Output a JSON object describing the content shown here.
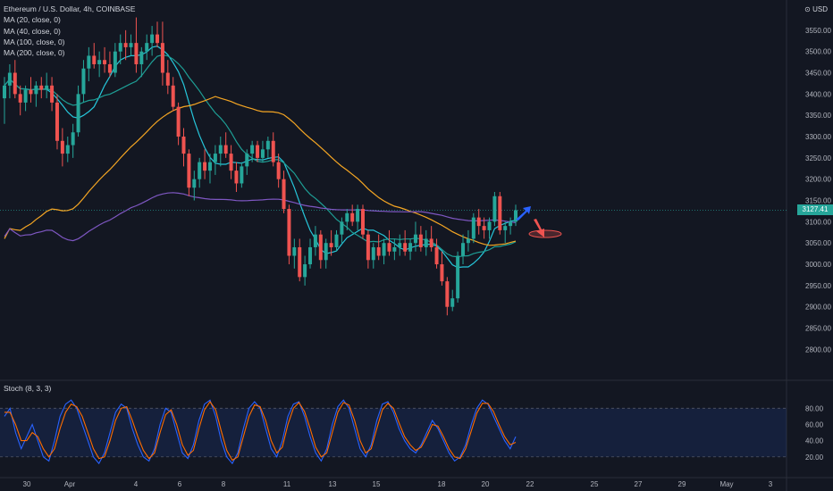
{
  "header": {
    "symbol_title": "Ethereum / U.S. Dollar, 4h, COINBASE",
    "currency_label": "USD",
    "currency_icon": "settings-icon"
  },
  "indicators": [
    {
      "label": "MA (20, close, 0)",
      "color": "#26c6da"
    },
    {
      "label": "MA (40, close, 0)",
      "color": "#1e9e95"
    },
    {
      "label": "MA (100, close, 0)",
      "color": "#f5a623"
    },
    {
      "label": "MA (200, close, 0)",
      "color": "#7e57c2"
    }
  ],
  "stoch_label": "Stoch (8, 3, 3)",
  "last_price": "3127.41",
  "colors": {
    "background": "#131722",
    "up": "#26a69a",
    "down": "#ef5350",
    "grid": "#1e222d",
    "axis_text": "#b2b5be",
    "stoch_k": "#2962ff",
    "stoch_d": "#ff6d00",
    "arrow_up": "#2962ff",
    "arrow_down": "#ef5350"
  },
  "chart_data": [
    {
      "type": "candlestick",
      "title": "Ethereum / U.S. Dollar, 4h, COINBASE",
      "ylim": [
        2740,
        3600
      ],
      "y_ticks": [
        2800,
        2850,
        2900,
        2950,
        3000,
        3050,
        3100,
        3150,
        3200,
        3250,
        3300,
        3350,
        3400,
        3450,
        3500,
        3550
      ],
      "x_tick_labels": [
        "30",
        "Apr",
        "4",
        "6",
        "8",
        "11",
        "13",
        "15",
        "18",
        "20",
        "22",
        "25",
        "27",
        "29",
        "May",
        "3"
      ],
      "grid": false,
      "candles": [
        {
          "o": 3390,
          "h": 3440,
          "l": 3330,
          "c": 3420
        },
        {
          "o": 3420,
          "h": 3470,
          "l": 3390,
          "c": 3450
        },
        {
          "o": 3450,
          "h": 3480,
          "l": 3390,
          "c": 3400
        },
        {
          "o": 3400,
          "h": 3420,
          "l": 3350,
          "c": 3380
        },
        {
          "o": 3380,
          "h": 3420,
          "l": 3360,
          "c": 3410
        },
        {
          "o": 3410,
          "h": 3440,
          "l": 3380,
          "c": 3400
        },
        {
          "o": 3400,
          "h": 3430,
          "l": 3370,
          "c": 3420
        },
        {
          "o": 3420,
          "h": 3440,
          "l": 3390,
          "c": 3410
        },
        {
          "o": 3410,
          "h": 3450,
          "l": 3390,
          "c": 3420
        },
        {
          "o": 3420,
          "h": 3440,
          "l": 3360,
          "c": 3380
        },
        {
          "o": 3380,
          "h": 3400,
          "l": 3270,
          "c": 3290
        },
        {
          "o": 3290,
          "h": 3320,
          "l": 3230,
          "c": 3260
        },
        {
          "o": 3260,
          "h": 3300,
          "l": 3240,
          "c": 3280
        },
        {
          "o": 3280,
          "h": 3330,
          "l": 3250,
          "c": 3310
        },
        {
          "o": 3310,
          "h": 3420,
          "l": 3300,
          "c": 3400
        },
        {
          "o": 3400,
          "h": 3480,
          "l": 3380,
          "c": 3460
        },
        {
          "o": 3460,
          "h": 3510,
          "l": 3430,
          "c": 3490
        },
        {
          "o": 3490,
          "h": 3520,
          "l": 3460,
          "c": 3470
        },
        {
          "o": 3470,
          "h": 3500,
          "l": 3440,
          "c": 3480
        },
        {
          "o": 3480,
          "h": 3510,
          "l": 3450,
          "c": 3470
        },
        {
          "o": 3470,
          "h": 3500,
          "l": 3440,
          "c": 3450
        },
        {
          "o": 3450,
          "h": 3520,
          "l": 3440,
          "c": 3500
        },
        {
          "o": 3500,
          "h": 3540,
          "l": 3470,
          "c": 3520
        },
        {
          "o": 3520,
          "h": 3550,
          "l": 3480,
          "c": 3510
        },
        {
          "o": 3510,
          "h": 3540,
          "l": 3490,
          "c": 3520
        },
        {
          "o": 3520,
          "h": 3580,
          "l": 3450,
          "c": 3470
        },
        {
          "o": 3470,
          "h": 3510,
          "l": 3440,
          "c": 3500
        },
        {
          "o": 3500,
          "h": 3540,
          "l": 3480,
          "c": 3520
        },
        {
          "o": 3520,
          "h": 3560,
          "l": 3490,
          "c": 3540
        },
        {
          "o": 3540,
          "h": 3570,
          "l": 3510,
          "c": 3520
        },
        {
          "o": 3520,
          "h": 3570,
          "l": 3420,
          "c": 3450
        },
        {
          "o": 3450,
          "h": 3480,
          "l": 3400,
          "c": 3420
        },
        {
          "o": 3420,
          "h": 3440,
          "l": 3360,
          "c": 3370
        },
        {
          "o": 3370,
          "h": 3380,
          "l": 3280,
          "c": 3300
        },
        {
          "o": 3300,
          "h": 3320,
          "l": 3230,
          "c": 3260
        },
        {
          "o": 3260,
          "h": 3270,
          "l": 3160,
          "c": 3180
        },
        {
          "o": 3180,
          "h": 3220,
          "l": 3150,
          "c": 3200
        },
        {
          "o": 3200,
          "h": 3250,
          "l": 3180,
          "c": 3240
        },
        {
          "o": 3240,
          "h": 3270,
          "l": 3200,
          "c": 3220
        },
        {
          "o": 3220,
          "h": 3260,
          "l": 3190,
          "c": 3240
        },
        {
          "o": 3240,
          "h": 3280,
          "l": 3210,
          "c": 3260
        },
        {
          "o": 3260,
          "h": 3300,
          "l": 3230,
          "c": 3280
        },
        {
          "o": 3280,
          "h": 3310,
          "l": 3250,
          "c": 3260
        },
        {
          "o": 3260,
          "h": 3280,
          "l": 3200,
          "c": 3220
        },
        {
          "o": 3220,
          "h": 3240,
          "l": 3170,
          "c": 3190
        },
        {
          "o": 3190,
          "h": 3240,
          "l": 3180,
          "c": 3230
        },
        {
          "o": 3230,
          "h": 3270,
          "l": 3210,
          "c": 3260
        },
        {
          "o": 3260,
          "h": 3290,
          "l": 3240,
          "c": 3280
        },
        {
          "o": 3280,
          "h": 3290,
          "l": 3240,
          "c": 3250
        },
        {
          "o": 3250,
          "h": 3290,
          "l": 3240,
          "c": 3270
        },
        {
          "o": 3270,
          "h": 3300,
          "l": 3250,
          "c": 3290
        },
        {
          "o": 3290,
          "h": 3310,
          "l": 3230,
          "c": 3240
        },
        {
          "o": 3240,
          "h": 3260,
          "l": 3180,
          "c": 3200
        },
        {
          "o": 3200,
          "h": 3220,
          "l": 3120,
          "c": 3130
        },
        {
          "o": 3130,
          "h": 3140,
          "l": 3000,
          "c": 3020
        },
        {
          "o": 3020,
          "h": 3060,
          "l": 2990,
          "c": 3040
        },
        {
          "o": 3040,
          "h": 3060,
          "l": 2960,
          "c": 2970
        },
        {
          "o": 2970,
          "h": 3020,
          "l": 2950,
          "c": 3000
        },
        {
          "o": 3000,
          "h": 3060,
          "l": 2990,
          "c": 3040
        },
        {
          "o": 3040,
          "h": 3090,
          "l": 3020,
          "c": 3070
        },
        {
          "o": 3070,
          "h": 3080,
          "l": 2990,
          "c": 3010
        },
        {
          "o": 3010,
          "h": 3060,
          "l": 2990,
          "c": 3050
        },
        {
          "o": 3050,
          "h": 3080,
          "l": 3020,
          "c": 3040
        },
        {
          "o": 3040,
          "h": 3080,
          "l": 3030,
          "c": 3070
        },
        {
          "o": 3070,
          "h": 3110,
          "l": 3050,
          "c": 3100
        },
        {
          "o": 3100,
          "h": 3130,
          "l": 3080,
          "c": 3120
        },
        {
          "o": 3120,
          "h": 3140,
          "l": 3090,
          "c": 3100
        },
        {
          "o": 3100,
          "h": 3140,
          "l": 3080,
          "c": 3130
        },
        {
          "o": 3130,
          "h": 3140,
          "l": 3060,
          "c": 3070
        },
        {
          "o": 3070,
          "h": 3080,
          "l": 2990,
          "c": 3010
        },
        {
          "o": 3010,
          "h": 3050,
          "l": 2990,
          "c": 3040
        },
        {
          "o": 3040,
          "h": 3070,
          "l": 3010,
          "c": 3020
        },
        {
          "o": 3020,
          "h": 3060,
          "l": 3000,
          "c": 3050
        },
        {
          "o": 3050,
          "h": 3080,
          "l": 3020,
          "c": 3030
        },
        {
          "o": 3030,
          "h": 3060,
          "l": 3010,
          "c": 3040
        },
        {
          "o": 3040,
          "h": 3070,
          "l": 3020,
          "c": 3050
        },
        {
          "o": 3050,
          "h": 3080,
          "l": 3020,
          "c": 3030
        },
        {
          "o": 3030,
          "h": 3060,
          "l": 3010,
          "c": 3050
        },
        {
          "o": 3050,
          "h": 3100,
          "l": 3030,
          "c": 3070
        },
        {
          "o": 3070,
          "h": 3090,
          "l": 3030,
          "c": 3040
        },
        {
          "o": 3040,
          "h": 3080,
          "l": 3020,
          "c": 3060
        },
        {
          "o": 3060,
          "h": 3090,
          "l": 3030,
          "c": 3040
        },
        {
          "o": 3040,
          "h": 3060,
          "l": 2990,
          "c": 3000
        },
        {
          "o": 3000,
          "h": 3030,
          "l": 2950,
          "c": 2960
        },
        {
          "o": 2960,
          "h": 2970,
          "l": 2880,
          "c": 2900
        },
        {
          "o": 2900,
          "h": 2940,
          "l": 2890,
          "c": 2920
        },
        {
          "o": 2920,
          "h": 3030,
          "l": 2910,
          "c": 3020
        },
        {
          "o": 3020,
          "h": 3070,
          "l": 3000,
          "c": 3050
        },
        {
          "o": 3050,
          "h": 3080,
          "l": 3030,
          "c": 3060
        },
        {
          "o": 3060,
          "h": 3120,
          "l": 3050,
          "c": 3110
        },
        {
          "o": 3110,
          "h": 3130,
          "l": 3070,
          "c": 3090
        },
        {
          "o": 3090,
          "h": 3110,
          "l": 3060,
          "c": 3080
        },
        {
          "o": 3080,
          "h": 3110,
          "l": 3060,
          "c": 3100
        },
        {
          "o": 3100,
          "h": 3170,
          "l": 3090,
          "c": 3160
        },
        {
          "o": 3160,
          "h": 3170,
          "l": 3070,
          "c": 3080
        },
        {
          "o": 3080,
          "h": 3100,
          "l": 3050,
          "c": 3090
        },
        {
          "o": 3090,
          "h": 3110,
          "l": 3070,
          "c": 3100
        },
        {
          "o": 3100,
          "h": 3140,
          "l": 3090,
          "c": 3127
        }
      ]
    },
    {
      "type": "line",
      "title": "Stoch (8, 3, 3)",
      "ylim": [
        0,
        110
      ],
      "y_ticks": [
        20,
        40,
        60,
        80
      ],
      "band": [
        20,
        80
      ],
      "series": [
        {
          "name": "K",
          "values": [
            70,
            80,
            50,
            30,
            45,
            60,
            40,
            20,
            15,
            40,
            70,
            85,
            90,
            80,
            60,
            40,
            20,
            12,
            25,
            50,
            75,
            85,
            80,
            55,
            35,
            20,
            15,
            30,
            60,
            80,
            75,
            50,
            25,
            18,
            35,
            65,
            85,
            90,
            70,
            40,
            20,
            12,
            25,
            55,
            80,
            88,
            80,
            55,
            30,
            20,
            40,
            70,
            85,
            88,
            70,
            45,
            25,
            15,
            30,
            60,
            82,
            90,
            80,
            55,
            30,
            20,
            35,
            65,
            85,
            88,
            75,
            55,
            40,
            30,
            25,
            35,
            50,
            65,
            55,
            40,
            25,
            15,
            20,
            35,
            60,
            80,
            90,
            85,
            70,
            55,
            40,
            30,
            45
          ]
        },
        {
          "name": "D",
          "values": [
            75,
            75,
            60,
            40,
            40,
            50,
            45,
            30,
            20,
            30,
            55,
            75,
            85,
            82,
            70,
            50,
            30,
            18,
            20,
            40,
            65,
            80,
            82,
            65,
            45,
            28,
            18,
            25,
            50,
            72,
            78,
            60,
            35,
            22,
            28,
            55,
            78,
            88,
            78,
            52,
            28,
            16,
            20,
            45,
            70,
            84,
            82,
            65,
            40,
            25,
            32,
            60,
            80,
            87,
            76,
            55,
            32,
            20,
            25,
            50,
            75,
            87,
            84,
            65,
            40,
            25,
            30,
            55,
            78,
            86,
            80,
            62,
            45,
            35,
            28,
            32,
            45,
            60,
            58,
            45,
            30,
            20,
            18,
            30,
            52,
            74,
            86,
            86,
            76,
            60,
            45,
            35,
            38
          ]
        }
      ]
    }
  ]
}
